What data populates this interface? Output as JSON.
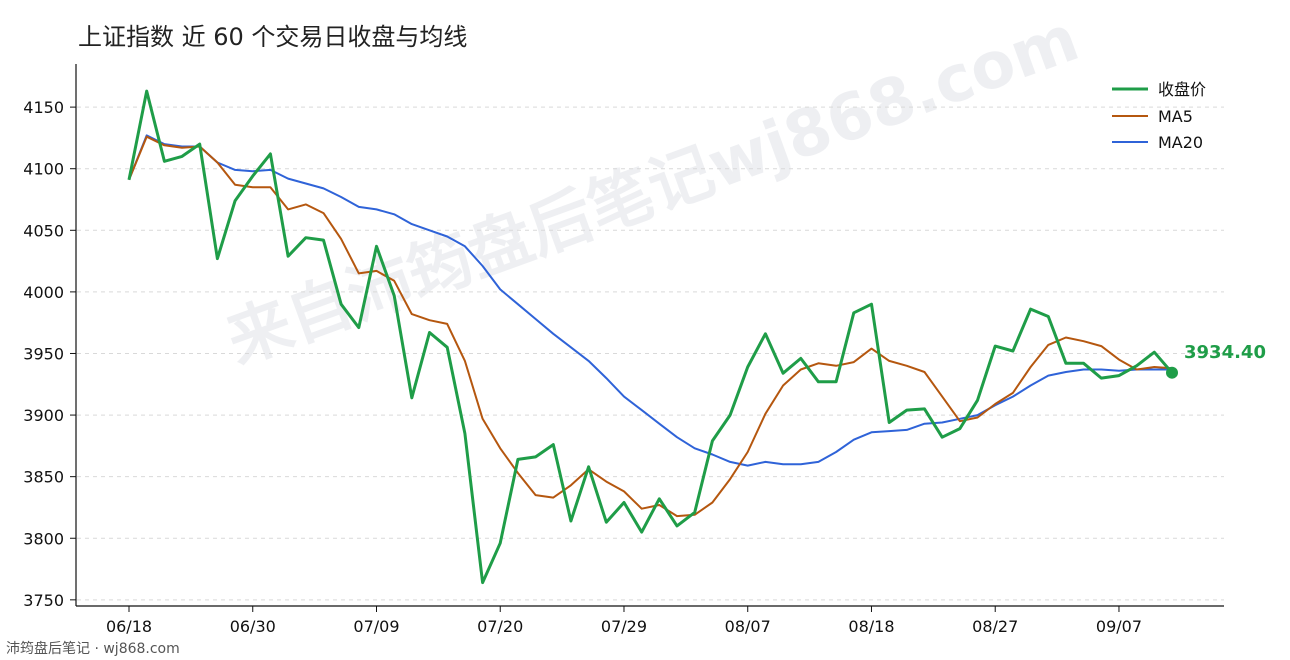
{
  "chart_data": {
    "type": "line",
    "title": "上证指数 近 60 个交易日收盘与均线",
    "xlabel": "",
    "ylabel": "",
    "ylim": [
      3745,
      4185
    ],
    "yticks": [
      3750,
      3800,
      3850,
      3900,
      3950,
      4000,
      4050,
      4100,
      4150
    ],
    "xtick_labels": [
      "06/18",
      "06/30",
      "07/09",
      "07/20",
      "07/29",
      "08/07",
      "08/18",
      "08/27",
      "09/07"
    ],
    "xtick_index": [
      0,
      7,
      14,
      21,
      28,
      35,
      42,
      49,
      56
    ],
    "grid": "horizontal dashed",
    "legend_position": "top-right",
    "colors": {
      "close": "#1f9d48",
      "ma5": "#b5570f",
      "ma20": "#2f63d8"
    },
    "series": [
      {
        "name": "收盘价",
        "values": [
          4091,
          4163,
          4106,
          4110,
          4120,
          4027,
          4074,
          4094,
          4112,
          4029,
          4044,
          4042,
          3990,
          3971,
          4037,
          3997,
          3914,
          3967,
          3955,
          3885,
          3764,
          3796,
          3864,
          3866,
          3876,
          3814,
          3858,
          3813,
          3829,
          3805,
          3832,
          3810,
          3821,
          3879,
          3900,
          3939,
          3966,
          3934,
          3946,
          3927,
          3927,
          3983,
          3990,
          3894,
          3904,
          3905,
          3882,
          3889,
          3912,
          3956,
          3952,
          3986,
          3980,
          3942,
          3942,
          3930,
          3932,
          3940,
          3951,
          3934.4
        ]
      },
      {
        "name": "MA5",
        "values": [
          4091,
          4126,
          4119,
          4117,
          4118,
          4105,
          4087,
          4085,
          4085,
          4067,
          4071,
          4064,
          4043,
          4015,
          4017,
          4009,
          3982,
          3977,
          3974,
          3944,
          3897,
          3873,
          3853,
          3835,
          3833,
          3843,
          3856,
          3846,
          3838,
          3824,
          3827,
          3818,
          3819,
          3829,
          3848,
          3870,
          3901,
          3924,
          3937,
          3942,
          3940,
          3943,
          3954,
          3944,
          3940,
          3935,
          3915,
          3895,
          3898,
          3909,
          3918,
          3939,
          3957,
          3963,
          3960,
          3956,
          3945,
          3937,
          3939,
          3938
        ]
      },
      {
        "name": "MA20",
        "values": [
          4091,
          4127,
          4120,
          4118,
          4118,
          4105,
          4099,
          4098,
          4099,
          4092,
          4088,
          4084,
          4077,
          4069,
          4067,
          4063,
          4055,
          4050,
          4045,
          4037,
          4021,
          4002,
          3990,
          3978,
          3966,
          3955,
          3944,
          3930,
          3915,
          3904,
          3893,
          3882,
          3873,
          3868,
          3862,
          3859,
          3862,
          3860,
          3860,
          3862,
          3870,
          3880,
          3886,
          3887,
          3888,
          3893,
          3894,
          3897,
          3900,
          3908,
          3915,
          3924,
          3932,
          3935,
          3937,
          3937,
          3936,
          3937,
          3937,
          3937
        ]
      }
    ],
    "last_value_label": "3934.40"
  },
  "watermark": "来自沛筠盘后笔记wj868.com",
  "footer": "沛筠盘后笔记 · wj868.com"
}
